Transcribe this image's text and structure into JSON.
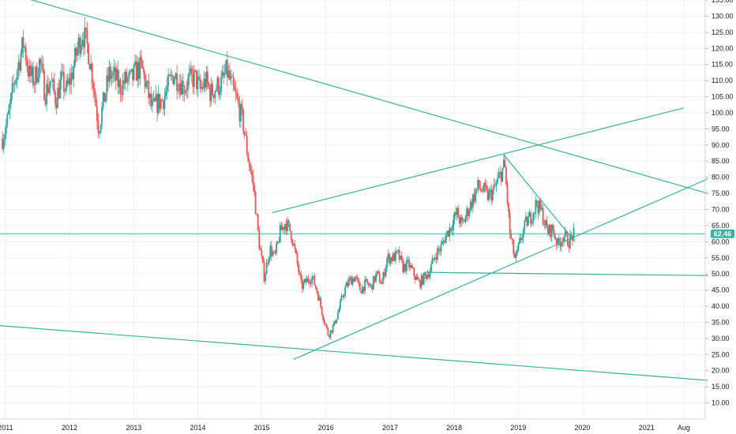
{
  "chart_data": {
    "type": "candlestick",
    "title": "",
    "xlabel": "",
    "ylabel": "",
    "ylim": [
      5,
      135
    ],
    "xlim": [
      "2010-12-01",
      "2021-12-01"
    ],
    "y_ticks": [
      "135.00",
      "130.00",
      "125.00",
      "120.00",
      "115.00",
      "110.00",
      "105.00",
      "100.00",
      "95.00",
      "90.00",
      "85.00",
      "80.00",
      "75.00",
      "70.00",
      "65.00",
      "60.00",
      "55.00",
      "50.00",
      "45.00",
      "40.00",
      "35.00",
      "30.00",
      "25.00",
      "20.00",
      "15.00",
      "10.00"
    ],
    "x_ticks": [
      {
        "date": "2011-01-01",
        "label": "2011"
      },
      {
        "date": "2012-01-01",
        "label": "2012"
      },
      {
        "date": "2013-01-01",
        "label": "2013"
      },
      {
        "date": "2014-01-01",
        "label": "2014"
      },
      {
        "date": "2015-01-01",
        "label": "2015"
      },
      {
        "date": "2016-01-01",
        "label": "2016"
      },
      {
        "date": "2017-01-01",
        "label": "2017"
      },
      {
        "date": "2018-01-01",
        "label": "2018"
      },
      {
        "date": "2019-01-01",
        "label": "2019"
      },
      {
        "date": "2020-01-01",
        "label": "2020"
      },
      {
        "date": "2021-01-01",
        "label": "2021"
      },
      {
        "date": "2021-08-01",
        "label": "Aug"
      }
    ],
    "last_price": "62.46",
    "up_color": "#26a69a",
    "down_color": "#ef5350",
    "trend_color": "#3ab09e",
    "badge_color": "#3ab09e",
    "price_path": [
      [
        "2010-12-15",
        92
      ],
      [
        "2011-01-15",
        98
      ],
      [
        "2011-02-15",
        108
      ],
      [
        "2011-03-15",
        115
      ],
      [
        "2011-04-15",
        122
      ],
      [
        "2011-05-15",
        112
      ],
      [
        "2011-06-15",
        110
      ],
      [
        "2011-07-15",
        116
      ],
      [
        "2011-08-15",
        106
      ],
      [
        "2011-09-15",
        110
      ],
      [
        "2011-10-15",
        104
      ],
      [
        "2011-11-15",
        110
      ],
      [
        "2011-12-15",
        107
      ],
      [
        "2012-01-15",
        112
      ],
      [
        "2012-02-15",
        120
      ],
      [
        "2012-03-15",
        125
      ],
      [
        "2012-04-15",
        120
      ],
      [
        "2012-05-15",
        110
      ],
      [
        "2012-06-15",
        95
      ],
      [
        "2012-07-15",
        104
      ],
      [
        "2012-08-15",
        112
      ],
      [
        "2012-09-15",
        111
      ],
      [
        "2012-10-15",
        108
      ],
      [
        "2012-11-15",
        110
      ],
      [
        "2012-12-15",
        110
      ],
      [
        "2013-01-15",
        113
      ],
      [
        "2013-02-15",
        114
      ],
      [
        "2013-03-15",
        108
      ],
      [
        "2013-04-15",
        101
      ],
      [
        "2013-05-15",
        103
      ],
      [
        "2013-06-15",
        104
      ],
      [
        "2013-07-15",
        108
      ],
      [
        "2013-08-15",
        112
      ],
      [
        "2013-09-15",
        110
      ],
      [
        "2013-10-15",
        108
      ],
      [
        "2013-11-15",
        110
      ],
      [
        "2013-12-15",
        111
      ],
      [
        "2014-01-15",
        107
      ],
      [
        "2014-02-15",
        110
      ],
      [
        "2014-03-15",
        106
      ],
      [
        "2014-04-15",
        108
      ],
      [
        "2014-05-15",
        109
      ],
      [
        "2014-06-15",
        113
      ],
      [
        "2014-07-15",
        108
      ],
      [
        "2014-08-15",
        103
      ],
      [
        "2014-09-15",
        97
      ],
      [
        "2014-10-15",
        86
      ],
      [
        "2014-11-15",
        77
      ],
      [
        "2014-12-15",
        60
      ],
      [
        "2015-01-15",
        49
      ],
      [
        "2015-02-15",
        58
      ],
      [
        "2015-03-15",
        55
      ],
      [
        "2015-04-15",
        63
      ],
      [
        "2015-05-15",
        66
      ],
      [
        "2015-06-15",
        63
      ],
      [
        "2015-07-15",
        55
      ],
      [
        "2015-08-15",
        46
      ],
      [
        "2015-09-15",
        48
      ],
      [
        "2015-10-15",
        49
      ],
      [
        "2015-11-15",
        44
      ],
      [
        "2015-12-15",
        37
      ],
      [
        "2016-01-15",
        31
      ],
      [
        "2016-02-15",
        34
      ],
      [
        "2016-03-15",
        39
      ],
      [
        "2016-04-15",
        45
      ],
      [
        "2016-05-15",
        48
      ],
      [
        "2016-06-15",
        49
      ],
      [
        "2016-07-15",
        45
      ],
      [
        "2016-08-15",
        47
      ],
      [
        "2016-09-15",
        46
      ],
      [
        "2016-10-15",
        50
      ],
      [
        "2016-11-15",
        47
      ],
      [
        "2016-12-15",
        55
      ],
      [
        "2017-01-15",
        55
      ],
      [
        "2017-02-15",
        56
      ],
      [
        "2017-03-15",
        52
      ],
      [
        "2017-04-15",
        53
      ],
      [
        "2017-05-15",
        50
      ],
      [
        "2017-06-15",
        47
      ],
      [
        "2017-07-15",
        49
      ],
      [
        "2017-08-15",
        51
      ],
      [
        "2017-09-15",
        56
      ],
      [
        "2017-10-15",
        58
      ],
      [
        "2017-11-15",
        62
      ],
      [
        "2017-12-15",
        65
      ],
      [
        "2018-01-15",
        69
      ],
      [
        "2018-02-15",
        65
      ],
      [
        "2018-03-15",
        69
      ],
      [
        "2018-04-15",
        73
      ],
      [
        "2018-05-15",
        77
      ],
      [
        "2018-06-15",
        76
      ],
      [
        "2018-07-15",
        74
      ],
      [
        "2018-08-15",
        76
      ],
      [
        "2018-09-15",
        80
      ],
      [
        "2018-10-15",
        84
      ],
      [
        "2018-11-15",
        62
      ],
      [
        "2018-12-15",
        54
      ],
      [
        "2019-01-15",
        61
      ],
      [
        "2019-02-15",
        66
      ],
      [
        "2019-03-15",
        68
      ],
      [
        "2019-04-15",
        72
      ],
      [
        "2019-05-15",
        69
      ],
      [
        "2019-06-15",
        63
      ],
      [
        "2019-07-15",
        64
      ],
      [
        "2019-08-15",
        59
      ],
      [
        "2019-09-15",
        62
      ],
      [
        "2019-10-15",
        60
      ],
      [
        "2019-11-15",
        62.46
      ]
    ],
    "drawings": [
      {
        "from": [
          "2010-11-20",
          138
        ],
        "to": [
          "2021-12-15",
          75
        ]
      },
      {
        "from": [
          "2015-03-01",
          69
        ],
        "to": [
          "2021-08-01",
          101.5
        ]
      },
      {
        "from": [
          "2015-07-01",
          23.5
        ],
        "to": [
          "2021-12-15",
          79.5
        ]
      },
      {
        "from": [
          "2010-11-20",
          34
        ],
        "to": [
          "2021-12-15",
          17
        ]
      },
      {
        "from": [
          "2017-07-15",
          50.5
        ],
        "to": [
          "2021-12-15",
          49.5
        ]
      },
      {
        "from": [
          "2018-10-10",
          87
        ],
        "to": [
          "2019-11-20",
          60
        ]
      }
    ]
  }
}
